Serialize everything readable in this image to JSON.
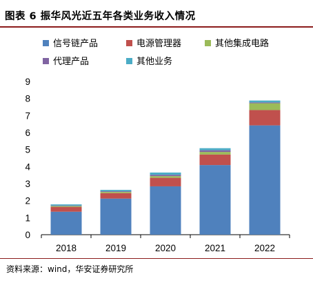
{
  "title": "图表 6  振华风光近五年各类业务收入情况",
  "source": "资料来源：wind，华安证券研究所",
  "chart_data": {
    "type": "bar",
    "stacked": true,
    "categories": [
      "2018",
      "2019",
      "2020",
      "2021",
      "2022"
    ],
    "series": [
      {
        "name": "信号链产品",
        "color": "#4f81bd",
        "values": [
          1.35,
          2.12,
          2.84,
          4.09,
          6.42
        ]
      },
      {
        "name": "电源管理器",
        "color": "#c0504d",
        "values": [
          0.28,
          0.32,
          0.5,
          0.62,
          0.9
        ]
      },
      {
        "name": "其他集成电路",
        "color": "#9bbb59",
        "values": [
          0.05,
          0.07,
          0.1,
          0.15,
          0.4
        ]
      },
      {
        "name": "代理产品",
        "color": "#8064a2",
        "values": [
          0.03,
          0.04,
          0.08,
          0.1,
          0.05
        ]
      },
      {
        "name": "其他业务",
        "color": "#4bacc6",
        "values": [
          0.07,
          0.08,
          0.13,
          0.12,
          0.11
        ]
      }
    ],
    "ylim": [
      0,
      9
    ],
    "yticks": [
      "0",
      "1",
      "2",
      "3",
      "4",
      "5",
      "6",
      "7",
      "8",
      "9"
    ],
    "grid": false,
    "legend_position": "top"
  }
}
